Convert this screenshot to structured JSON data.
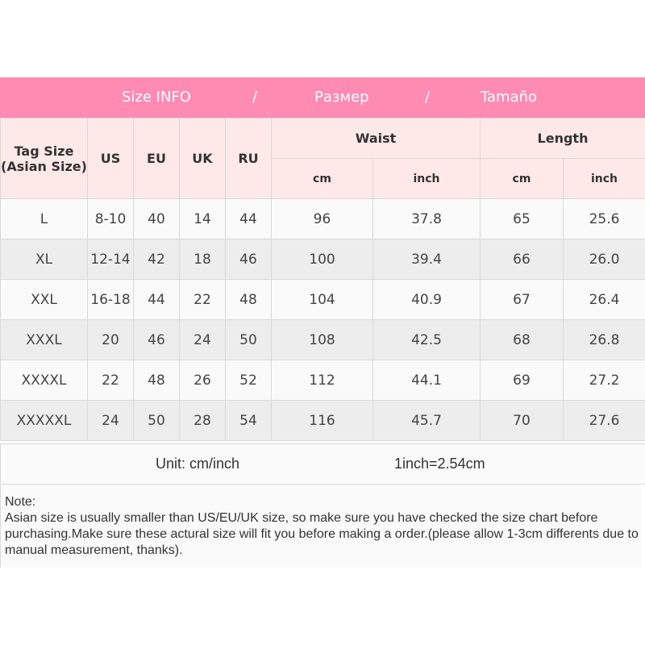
{
  "banner": {
    "title_en": "Size INFO",
    "sep": "/",
    "title_ru": "Размер",
    "title_es": "Tamaño"
  },
  "header": {
    "tag_size": "Tag Size",
    "tag_size_sub": "(Asian Size)",
    "us": "US",
    "eu": "EU",
    "uk": "UK",
    "ru": "RU",
    "waist": "Waist",
    "length": "Length",
    "cm": "cm",
    "inch": "inch"
  },
  "rows": [
    [
      "L",
      "8-10",
      "40",
      "14",
      "44",
      "96",
      "37.8",
      "65",
      "25.6"
    ],
    [
      "XL",
      "12-14",
      "42",
      "18",
      "46",
      "100",
      "39.4",
      "66",
      "26.0"
    ],
    [
      "XXL",
      "16-18",
      "44",
      "22",
      "48",
      "104",
      "40.9",
      "67",
      "26.4"
    ],
    [
      "XXXL",
      "20",
      "46",
      "24",
      "50",
      "108",
      "42.5",
      "68",
      "26.8"
    ],
    [
      "XXXXL",
      "22",
      "48",
      "26",
      "52",
      "112",
      "44.1",
      "69",
      "27.2"
    ],
    [
      "XXXXXL",
      "24",
      "50",
      "28",
      "54",
      "116",
      "45.7",
      "70",
      "27.6"
    ]
  ],
  "unit": {
    "label": "Unit: cm/inch",
    "conversion": "1inch=2.54cm"
  },
  "note": {
    "title": "Note:",
    "text": "Asian size is usually smaller than US/EU/UK size, so make sure you have checked the size chart before purchasing.Make sure these actural size will fit you before making a order.(please allow 1-3cm differents due to manual measurement, thanks)."
  },
  "colors": {
    "banner": "#FF8BB3",
    "header_bg": "#FFE8E8"
  }
}
